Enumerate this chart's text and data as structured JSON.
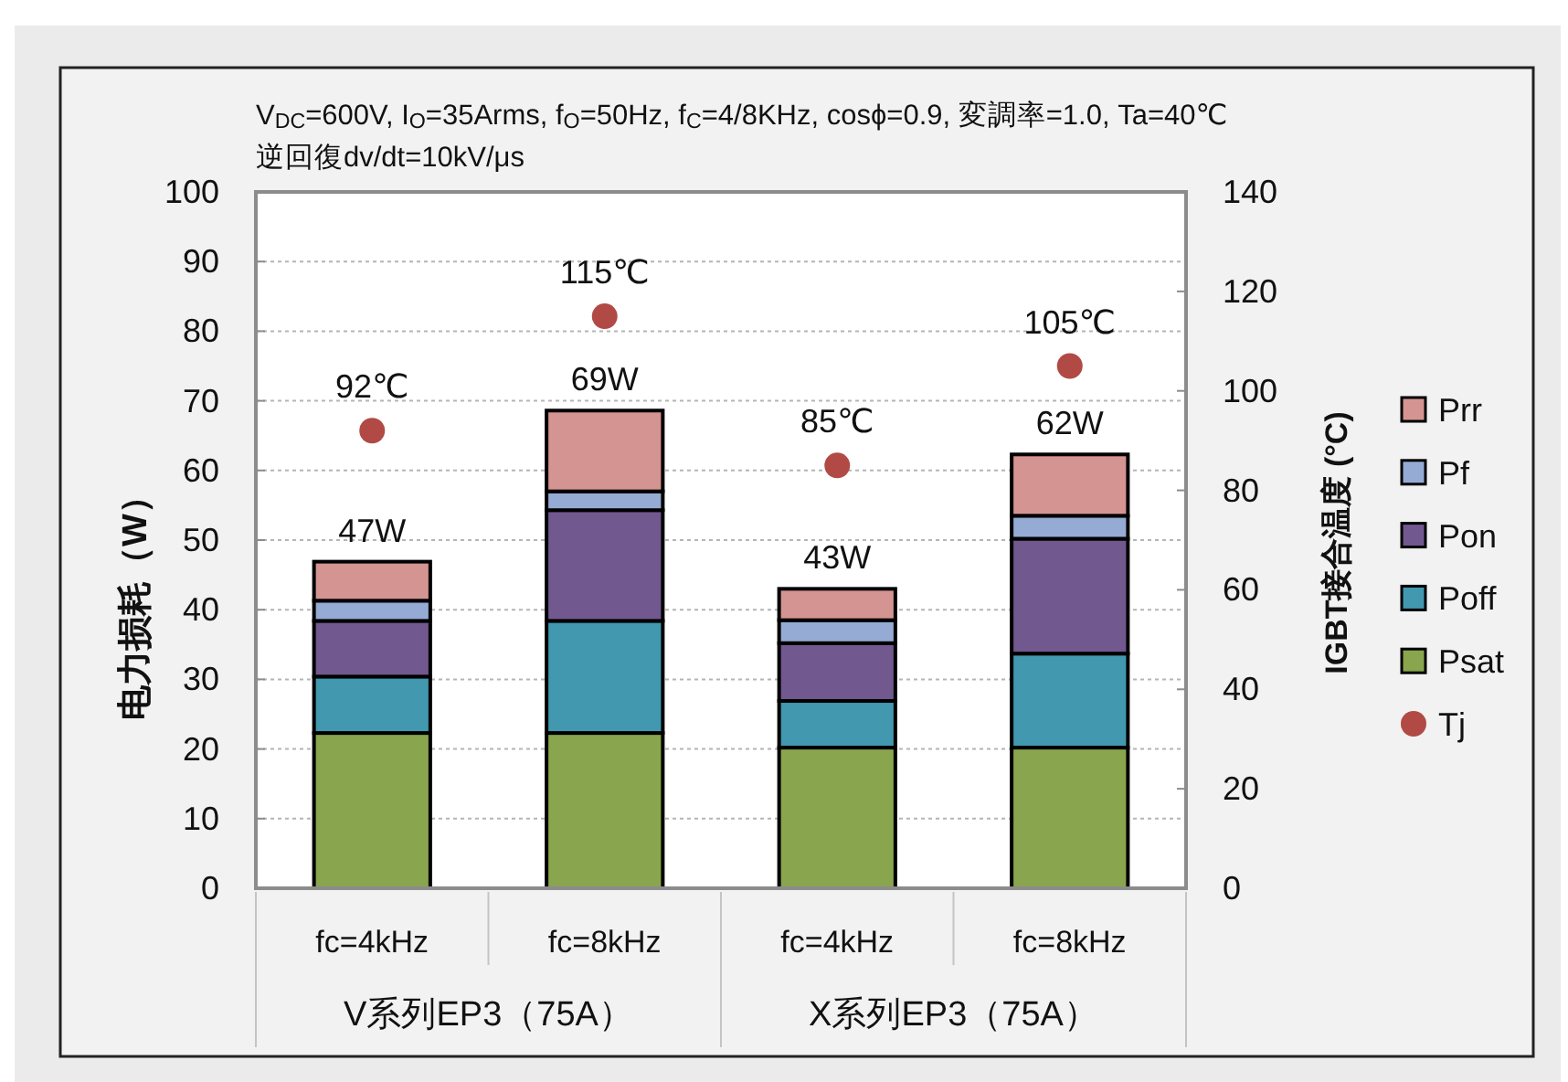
{
  "chart_data": {
    "type": "bar",
    "title": "V$_{DC}$=600V, I$_{O}$=35Arms, f$_{O}$=50Hz, f$_{C}$=4/8KHz, cosϕ=0.9, 変調率=1.0, Ta=40℃",
    "subtitle": "逆回復dv/dt=10kV/μs",
    "categories": [
      "fc=4kHz",
      "fc=8kHz",
      "fc=4kHz",
      "fc=8kHz"
    ],
    "annotations": [
      "V系列EP3（75A）",
      "X系列EP3（75A）"
    ],
    "ylabel": "电力损耗（W）",
    "y2label": "IGBT接合温度 (°C)",
    "stacked": true,
    "series": [
      {
        "name": "Psat",
        "color": "#89a54e",
        "values": [
          22.3,
          22.3,
          20.2,
          20.2
        ]
      },
      {
        "name": "Poff",
        "color": "#4198af",
        "values": [
          8.1,
          16.1,
          6.7,
          13.5
        ]
      },
      {
        "name": "Pon",
        "color": "#71588f",
        "values": [
          8.0,
          15.9,
          8.3,
          16.5
        ]
      },
      {
        "name": "Pf",
        "color": "#95abd4",
        "values": [
          2.9,
          2.7,
          3.3,
          3.3
        ]
      },
      {
        "name": "Prr",
        "color": "#d49492",
        "values": [
          5.6,
          11.6,
          4.5,
          8.8
        ]
      },
      {
        "name": "Tj",
        "type": "scatter",
        "axis": "y2",
        "marker": "circle",
        "color": "#b14a45",
        "values": [
          92,
          115,
          85,
          105
        ],
        "value_labels": [
          "92℃",
          "115℃",
          "85℃",
          "105℃"
        ]
      }
    ],
    "totals": [
      "47W",
      "69W",
      "43W",
      "62W"
    ],
    "ylim": [
      0,
      100
    ],
    "yticks": [
      0,
      10,
      20,
      30,
      40,
      50,
      60,
      70,
      80,
      90,
      100
    ],
    "y2lim": [
      0,
      140
    ],
    "y2ticks": [
      0,
      20,
      40,
      60,
      80,
      100,
      120,
      140
    ],
    "grid": "y",
    "legend": "right"
  }
}
